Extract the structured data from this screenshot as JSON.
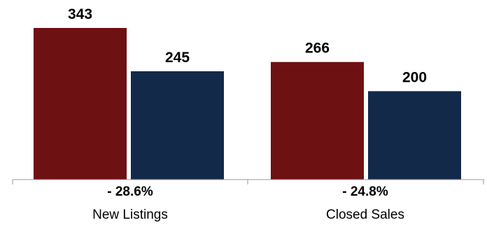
{
  "chart_data": {
    "type": "bar",
    "categories": [
      "New Listings",
      "Closed Sales"
    ],
    "series": [
      {
        "values": [
          343,
          266
        ],
        "color": "#6e1113"
      },
      {
        "values": [
          245,
          200
        ],
        "color": "#13294a"
      }
    ],
    "changes": [
      "- 28.6%",
      "- 24.8%"
    ],
    "ylim": [
      0,
      343
    ],
    "grid": false
  }
}
